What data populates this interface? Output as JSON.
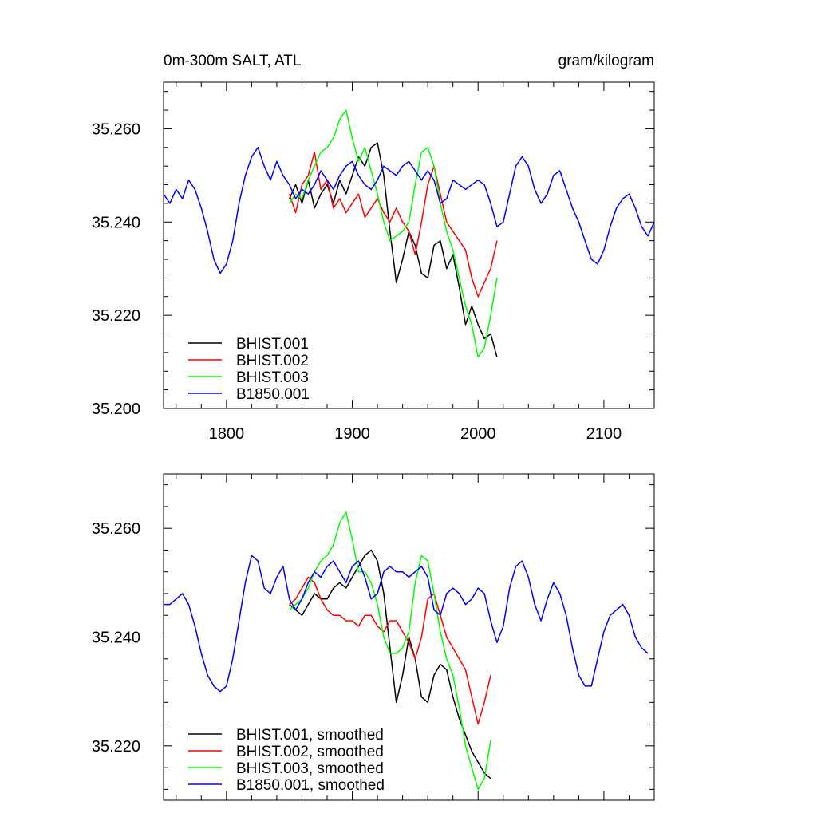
{
  "chart_data": [
    {
      "type": "line",
      "title_left": "0m-300m SALT, ATL",
      "title_right": "gram/kilogram",
      "xlabel": "",
      "ylabel": "",
      "xlim": [
        1750,
        2140
      ],
      "ylim": [
        35.2,
        35.27
      ],
      "xticks": [
        1800,
        1900,
        2000,
        2100
      ],
      "xtick_labels": [
        "1800",
        "1900",
        "2000",
        "2100"
      ],
      "yticks": [
        35.2,
        35.22,
        35.24,
        35.26
      ],
      "ytick_labels": [
        "35.200",
        "35.220",
        "35.240",
        "35.260"
      ],
      "legend_position": "bottom-left",
      "series": [
        {
          "name": "BHIST.001",
          "color": "#000000",
          "x": [
            1850,
            1855,
            1860,
            1865,
            1870,
            1875,
            1880,
            1885,
            1890,
            1895,
            1900,
            1905,
            1910,
            1915,
            1920,
            1925,
            1930,
            1935,
            1940,
            1945,
            1950,
            1955,
            1960,
            1965,
            1970,
            1975,
            1980,
            1985,
            1990,
            1995,
            2000,
            2005,
            2010,
            2015
          ],
          "y": [
            35.245,
            35.248,
            35.244,
            35.249,
            35.243,
            35.246,
            35.248,
            35.244,
            35.249,
            35.246,
            35.25,
            35.254,
            35.252,
            35.256,
            35.257,
            35.25,
            35.238,
            35.227,
            35.232,
            35.238,
            35.235,
            35.229,
            35.228,
            35.235,
            35.236,
            35.23,
            35.233,
            35.226,
            35.218,
            35.222,
            35.218,
            35.215,
            35.216,
            35.211
          ]
        },
        {
          "name": "BHIST.002",
          "color": "#ff0000",
          "x": [
            1850,
            1855,
            1860,
            1865,
            1870,
            1875,
            1880,
            1885,
            1890,
            1895,
            1900,
            1905,
            1910,
            1915,
            1920,
            1925,
            1930,
            1935,
            1940,
            1945,
            1950,
            1955,
            1960,
            1965,
            1970,
            1975,
            1980,
            1985,
            1990,
            1995,
            2000,
            2005,
            2010,
            2015
          ],
          "y": [
            35.246,
            35.242,
            35.248,
            35.25,
            35.255,
            35.247,
            35.249,
            35.243,
            35.245,
            35.242,
            35.244,
            35.246,
            35.241,
            35.243,
            35.245,
            35.242,
            35.24,
            35.243,
            35.24,
            35.238,
            35.233,
            35.24,
            35.248,
            35.252,
            35.246,
            35.24,
            35.238,
            35.236,
            35.234,
            35.228,
            35.224,
            35.227,
            35.23,
            35.236
          ]
        },
        {
          "name": "BHIST.003",
          "color": "#00ff00",
          "x": [
            1850,
            1855,
            1860,
            1865,
            1870,
            1875,
            1880,
            1885,
            1890,
            1895,
            1900,
            1905,
            1910,
            1915,
            1920,
            1925,
            1930,
            1935,
            1940,
            1945,
            1950,
            1955,
            1960,
            1965,
            1970,
            1975,
            1980,
            1985,
            1990,
            1995,
            2000,
            2005,
            2010,
            2015
          ],
          "y": [
            35.244,
            35.246,
            35.245,
            35.249,
            35.252,
            35.255,
            35.256,
            35.258,
            35.262,
            35.264,
            35.258,
            35.253,
            35.256,
            35.251,
            35.246,
            35.24,
            35.236,
            35.237,
            35.238,
            35.24,
            35.248,
            35.255,
            35.256,
            35.252,
            35.244,
            35.238,
            35.234,
            35.228,
            35.222,
            35.218,
            35.211,
            35.213,
            35.22,
            35.228
          ]
        },
        {
          "name": "B1850.001",
          "color": "#0000ff",
          "x": [
            1750,
            1755,
            1760,
            1765,
            1770,
            1775,
            1780,
            1785,
            1790,
            1795,
            1800,
            1805,
            1810,
            1815,
            1820,
            1825,
            1830,
            1835,
            1840,
            1845,
            1850,
            1855,
            1860,
            1865,
            1870,
            1875,
            1880,
            1885,
            1890,
            1895,
            1900,
            1905,
            1910,
            1915,
            1920,
            1925,
            1930,
            1935,
            1940,
            1945,
            1950,
            1955,
            1960,
            1965,
            1970,
            1975,
            1980,
            1985,
            1990,
            1995,
            2000,
            2005,
            2010,
            2015,
            2020,
            2025,
            2030,
            2035,
            2040,
            2045,
            2050,
            2055,
            2060,
            2065,
            2070,
            2075,
            2080,
            2085,
            2090,
            2095,
            2100,
            2105,
            2110,
            2115,
            2120,
            2125,
            2130,
            2135,
            2140
          ],
          "y": [
            35.246,
            35.244,
            35.247,
            35.245,
            35.249,
            35.247,
            35.243,
            35.238,
            35.232,
            35.229,
            35.231,
            35.236,
            35.244,
            35.25,
            35.254,
            35.256,
            35.252,
            35.249,
            35.253,
            35.25,
            35.248,
            35.245,
            35.247,
            35.246,
            35.248,
            35.251,
            35.249,
            35.247,
            35.25,
            35.252,
            35.253,
            35.25,
            35.248,
            35.247,
            35.249,
            35.252,
            35.251,
            35.25,
            35.252,
            35.253,
            35.251,
            35.249,
            35.251,
            35.249,
            35.244,
            35.245,
            35.249,
            35.248,
            35.247,
            35.248,
            35.249,
            35.248,
            35.244,
            35.239,
            35.24,
            35.246,
            35.252,
            35.254,
            35.252,
            35.247,
            35.244,
            35.246,
            35.25,
            35.251,
            35.247,
            35.243,
            35.24,
            35.236,
            35.232,
            35.231,
            35.234,
            35.239,
            35.243,
            35.245,
            35.246,
            35.243,
            35.239,
            35.237,
            35.24
          ]
        }
      ]
    },
    {
      "type": "line",
      "title_left": "",
      "title_right": "",
      "xlabel": "",
      "ylabel": "",
      "xlim": [
        1750,
        2140
      ],
      "ylim": [
        35.21,
        35.27
      ],
      "xticks": [
        1800,
        1900,
        2000,
        2100
      ],
      "xtick_labels": [
        "",
        "",
        "",
        ""
      ],
      "yticks": [
        35.22,
        35.24,
        35.26
      ],
      "ytick_labels": [
        "35.220",
        "35.240",
        "35.260"
      ],
      "legend_position": "bottom-left",
      "series": [
        {
          "name": "BHIST.001, smoothed",
          "color": "#000000",
          "x": [
            1850,
            1855,
            1860,
            1865,
            1870,
            1875,
            1880,
            1885,
            1890,
            1895,
            1900,
            1905,
            1910,
            1915,
            1920,
            1925,
            1930,
            1935,
            1940,
            1945,
            1950,
            1955,
            1960,
            1965,
            1970,
            1975,
            1980,
            1985,
            1990,
            1995,
            2000,
            2005,
            2010
          ],
          "y": [
            35.246,
            35.245,
            35.244,
            35.246,
            35.248,
            35.247,
            35.247,
            35.249,
            35.25,
            35.249,
            35.251,
            35.253,
            35.255,
            35.256,
            35.254,
            35.248,
            35.238,
            35.228,
            35.233,
            35.24,
            35.236,
            35.229,
            35.228,
            35.233,
            35.235,
            35.234,
            35.229,
            35.225,
            35.222,
            35.219,
            35.217,
            35.215,
            35.214
          ]
        },
        {
          "name": "BHIST.002, smoothed",
          "color": "#ff0000",
          "x": [
            1850,
            1855,
            1860,
            1865,
            1870,
            1875,
            1880,
            1885,
            1890,
            1895,
            1900,
            1905,
            1910,
            1915,
            1920,
            1925,
            1930,
            1935,
            1940,
            1945,
            1950,
            1955,
            1960,
            1965,
            1970,
            1975,
            1980,
            1985,
            1990,
            1995,
            2000,
            2005,
            2010
          ],
          "y": [
            35.246,
            35.247,
            35.249,
            35.251,
            35.25,
            35.247,
            35.245,
            35.244,
            35.244,
            35.243,
            35.243,
            35.242,
            35.244,
            35.244,
            35.242,
            35.241,
            35.243,
            35.243,
            35.241,
            35.239,
            35.236,
            35.24,
            35.247,
            35.248,
            35.244,
            35.24,
            35.238,
            35.236,
            35.234,
            35.229,
            35.224,
            35.228,
            35.233
          ]
        },
        {
          "name": "BHIST.003, smoothed",
          "color": "#00ff00",
          "x": [
            1850,
            1855,
            1860,
            1865,
            1870,
            1875,
            1880,
            1885,
            1890,
            1895,
            1900,
            1905,
            1910,
            1915,
            1920,
            1925,
            1930,
            1935,
            1940,
            1945,
            1950,
            1955,
            1960,
            1965,
            1970,
            1975,
            1980,
            1985,
            1990,
            1995,
            2000,
            2005,
            2010
          ],
          "y": [
            35.245,
            35.246,
            35.247,
            35.249,
            35.252,
            35.254,
            35.255,
            35.257,
            35.261,
            35.263,
            35.258,
            35.252,
            35.252,
            35.25,
            35.246,
            35.24,
            35.237,
            35.237,
            35.238,
            35.241,
            35.25,
            35.255,
            35.254,
            35.248,
            35.241,
            35.236,
            35.233,
            35.227,
            35.22,
            35.216,
            35.212,
            35.214,
            35.221
          ]
        },
        {
          "name": "B1850.001, smoothed",
          "color": "#0000ff",
          "x": [
            1750,
            1755,
            1760,
            1765,
            1770,
            1775,
            1780,
            1785,
            1790,
            1795,
            1800,
            1805,
            1810,
            1815,
            1820,
            1825,
            1830,
            1835,
            1840,
            1845,
            1850,
            1855,
            1860,
            1865,
            1870,
            1875,
            1880,
            1885,
            1890,
            1895,
            1900,
            1905,
            1910,
            1915,
            1920,
            1925,
            1930,
            1935,
            1940,
            1945,
            1950,
            1955,
            1960,
            1965,
            1970,
            1975,
            1980,
            1985,
            1990,
            1995,
            2000,
            2005,
            2010,
            2015,
            2020,
            2025,
            2030,
            2035,
            2040,
            2045,
            2050,
            2055,
            2060,
            2065,
            2070,
            2075,
            2080,
            2085,
            2090,
            2095,
            2100,
            2105,
            2110,
            2115,
            2120,
            2125,
            2130,
            2135
          ],
          "y": [
            35.246,
            35.246,
            35.247,
            35.248,
            35.246,
            35.242,
            35.237,
            35.233,
            35.231,
            35.23,
            35.231,
            35.236,
            35.243,
            35.25,
            35.255,
            35.254,
            35.249,
            35.248,
            35.251,
            35.253,
            35.247,
            35.245,
            35.247,
            35.25,
            35.252,
            35.251,
            35.253,
            35.254,
            35.252,
            35.25,
            35.253,
            35.254,
            35.251,
            35.247,
            35.248,
            35.252,
            35.253,
            35.252,
            35.252,
            35.251,
            35.252,
            35.253,
            35.251,
            35.245,
            35.244,
            35.248,
            35.249,
            35.248,
            35.246,
            35.247,
            35.249,
            35.248,
            35.243,
            35.239,
            35.242,
            35.249,
            35.253,
            35.254,
            35.251,
            35.246,
            35.243,
            35.247,
            35.25,
            35.248,
            35.244,
            35.238,
            35.233,
            35.231,
            35.231,
            35.236,
            35.241,
            35.244,
            35.245,
            35.246,
            35.244,
            35.24,
            35.238,
            35.237
          ]
        }
      ]
    }
  ]
}
